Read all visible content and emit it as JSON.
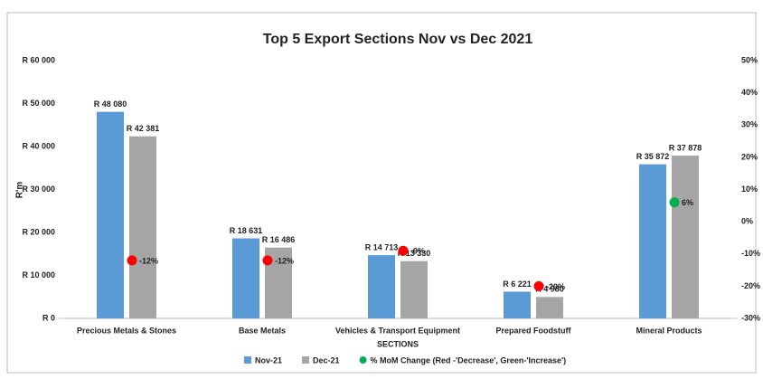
{
  "chart_data": {
    "type": "bar",
    "title": "Top 5 Export Sections  Nov vs Dec 2021",
    "y_label": "R'm",
    "x_label": "SECTIONS",
    "categories": [
      "Precious Metals & Stones",
      "Base Metals",
      "Vehicles & Transport Equipment",
      "Prepared Foodstuff",
      "Mineral Products"
    ],
    "series": [
      {
        "name": "Nov-21",
        "color": "#5b9bd5",
        "values": [
          48080,
          18631,
          14713,
          6221,
          35872
        ],
        "value_labels": [
          "R 48 080",
          "R 18 631",
          "R 14 713",
          "R 6 221",
          "R 35 872"
        ]
      },
      {
        "name": "Dec-21",
        "color": "#a5a5a5",
        "values": [
          42381,
          16486,
          13330,
          4980,
          37878
        ],
        "value_labels": [
          "R 42 381",
          "R 16 486",
          "R 13 330",
          "R 4 980",
          "R 37 878"
        ]
      },
      {
        "name": "% MoM Change (Red -'Decrease', Green-'Increase')",
        "type": "scatter",
        "axis": "y2",
        "color": "#00b050",
        "values": [
          -12,
          -12,
          -9,
          -20,
          6
        ],
        "value_labels": [
          "-12%",
          "-12%",
          "-9%",
          "-20%",
          "6%"
        ],
        "colors": [
          "#ff0000",
          "#ff0000",
          "#ff0000",
          "#ff0000",
          "#00b050"
        ]
      }
    ],
    "ylim": [
      0,
      60000
    ],
    "yticks": [
      {
        "value": 0,
        "label": "R 0"
      },
      {
        "value": 10000,
        "label": "R 10 000"
      },
      {
        "value": 20000,
        "label": "R 20 000"
      },
      {
        "value": 30000,
        "label": "R 30 000"
      },
      {
        "value": 40000,
        "label": "R 40 000"
      },
      {
        "value": 50000,
        "label": "R 50 000"
      },
      {
        "value": 60000,
        "label": "R 60 000"
      }
    ],
    "y2lim": [
      -30,
      50
    ],
    "y2ticks": [
      {
        "value": -30,
        "label": "-30%"
      },
      {
        "value": -20,
        "label": "-20%"
      },
      {
        "value": -10,
        "label": "-10%"
      },
      {
        "value": 0,
        "label": "0%"
      },
      {
        "value": 10,
        "label": "10%"
      },
      {
        "value": 20,
        "label": "20%"
      },
      {
        "value": 30,
        "label": "30%"
      },
      {
        "value": 40,
        "label": "40%"
      },
      {
        "value": 50,
        "label": "50%"
      }
    ],
    "grid": false
  }
}
